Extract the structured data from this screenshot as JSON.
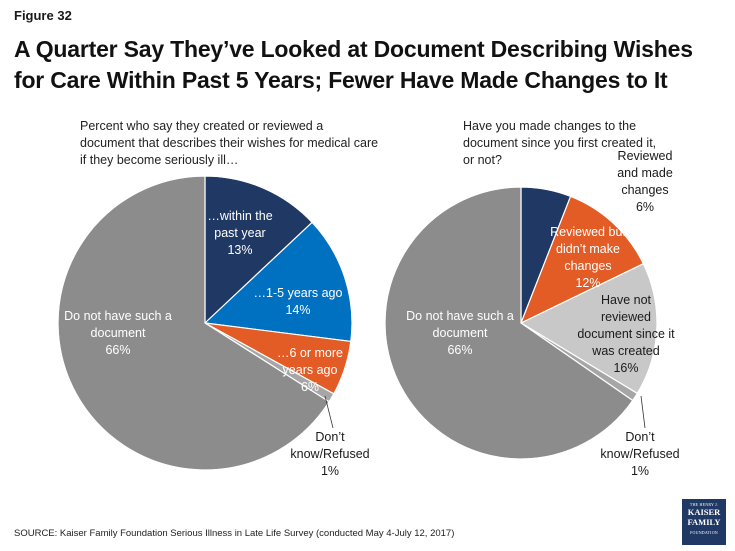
{
  "figure_label": "Figure 32",
  "title": "A Quarter Say They’ve Looked at Document Describing Wishes for Care Within Past 5 Years; Fewer Have Made Changes to It",
  "source": "SOURCE: Kaiser Family Foundation Serious Illness in Late Life Survey (conducted May 4-July 12, 2017)",
  "logo": {
    "line1": "THE HENRY J.",
    "line2": "KAISER",
    "line3": "FAMILY",
    "line4": "FOUNDATION"
  },
  "colors": {
    "navy": "#1f3864",
    "blue": "#0070c0",
    "orange": "#e35b25",
    "gray": "#8c8c8c",
    "light_gray": "#c8c8c8",
    "dark_gray": "#a6a6a6"
  },
  "chart_data": [
    {
      "type": "pie",
      "subtitle": "Percent who say they created or reviewed a document that describes their wishes for medical care if they become seriously ill…",
      "slices": [
        {
          "label": [
            "…within the",
            "past year",
            "13%"
          ],
          "value": 13,
          "color": "#1f3864"
        },
        {
          "label": [
            "…1-5 years ago",
            "14%"
          ],
          "value": 14,
          "color": "#0070c0"
        },
        {
          "label": [
            "…6 or more",
            "years ago",
            "6%"
          ],
          "value": 6,
          "color": "#e35b25"
        },
        {
          "label": [
            "Don’t",
            "know/Refused",
            "1%"
          ],
          "value": 1,
          "color": "#a6a6a6"
        },
        {
          "label": [
            "Do not have such a",
            "document",
            "66%"
          ],
          "value": 66,
          "color": "#8c8c8c"
        }
      ]
    },
    {
      "type": "pie",
      "subtitle": "Have you made changes to the document since you first created it, or not?",
      "slices": [
        {
          "label": [
            "Reviewed",
            "and made",
            "changes",
            "6%"
          ],
          "value": 6,
          "color": "#1f3864"
        },
        {
          "label": [
            "Reviewed but",
            "didn’t make",
            "changes",
            "12%"
          ],
          "value": 12,
          "color": "#e35b25"
        },
        {
          "label": [
            "Have not",
            "reviewed",
            "document since it",
            "was created",
            "16%"
          ],
          "value": 16,
          "color": "#c8c8c8"
        },
        {
          "label": [
            "Don’t",
            "know/Refused",
            "1%"
          ],
          "value": 1,
          "color": "#a6a6a6"
        },
        {
          "label": [
            "Do not have such a",
            "document",
            "66%"
          ],
          "value": 66,
          "color": "#8c8c8c"
        }
      ]
    }
  ]
}
